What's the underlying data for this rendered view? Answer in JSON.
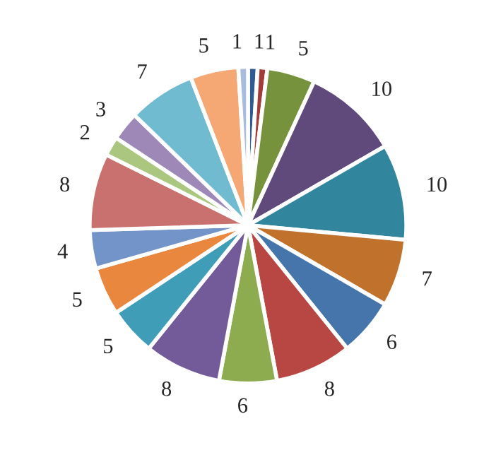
{
  "chart_data": {
    "type": "pie",
    "categories": [
      null,
      null,
      null,
      null,
      null,
      null,
      null,
      null,
      null,
      null,
      null,
      null,
      null,
      null,
      null,
      null,
      null,
      null,
      null
    ],
    "values": [
      1,
      1,
      5,
      10,
      10,
      7,
      6,
      8,
      6,
      8,
      5,
      5,
      4,
      8,
      2,
      3,
      7,
      5,
      1
    ],
    "colors": [
      "#2f5a93",
      "#a33b39",
      "#76923c",
      "#5f4a7b",
      "#31859c",
      "#c0722d",
      "#4675ac",
      "#b84643",
      "#8cac4f",
      "#735a99",
      "#3f9db8",
      "#e8873d",
      "#7394c8",
      "#c9716f",
      "#abc67f",
      "#9d88b7",
      "#71bbd0",
      "#f5a774",
      "#a9bcde"
    ],
    "data_labels": true
  }
}
